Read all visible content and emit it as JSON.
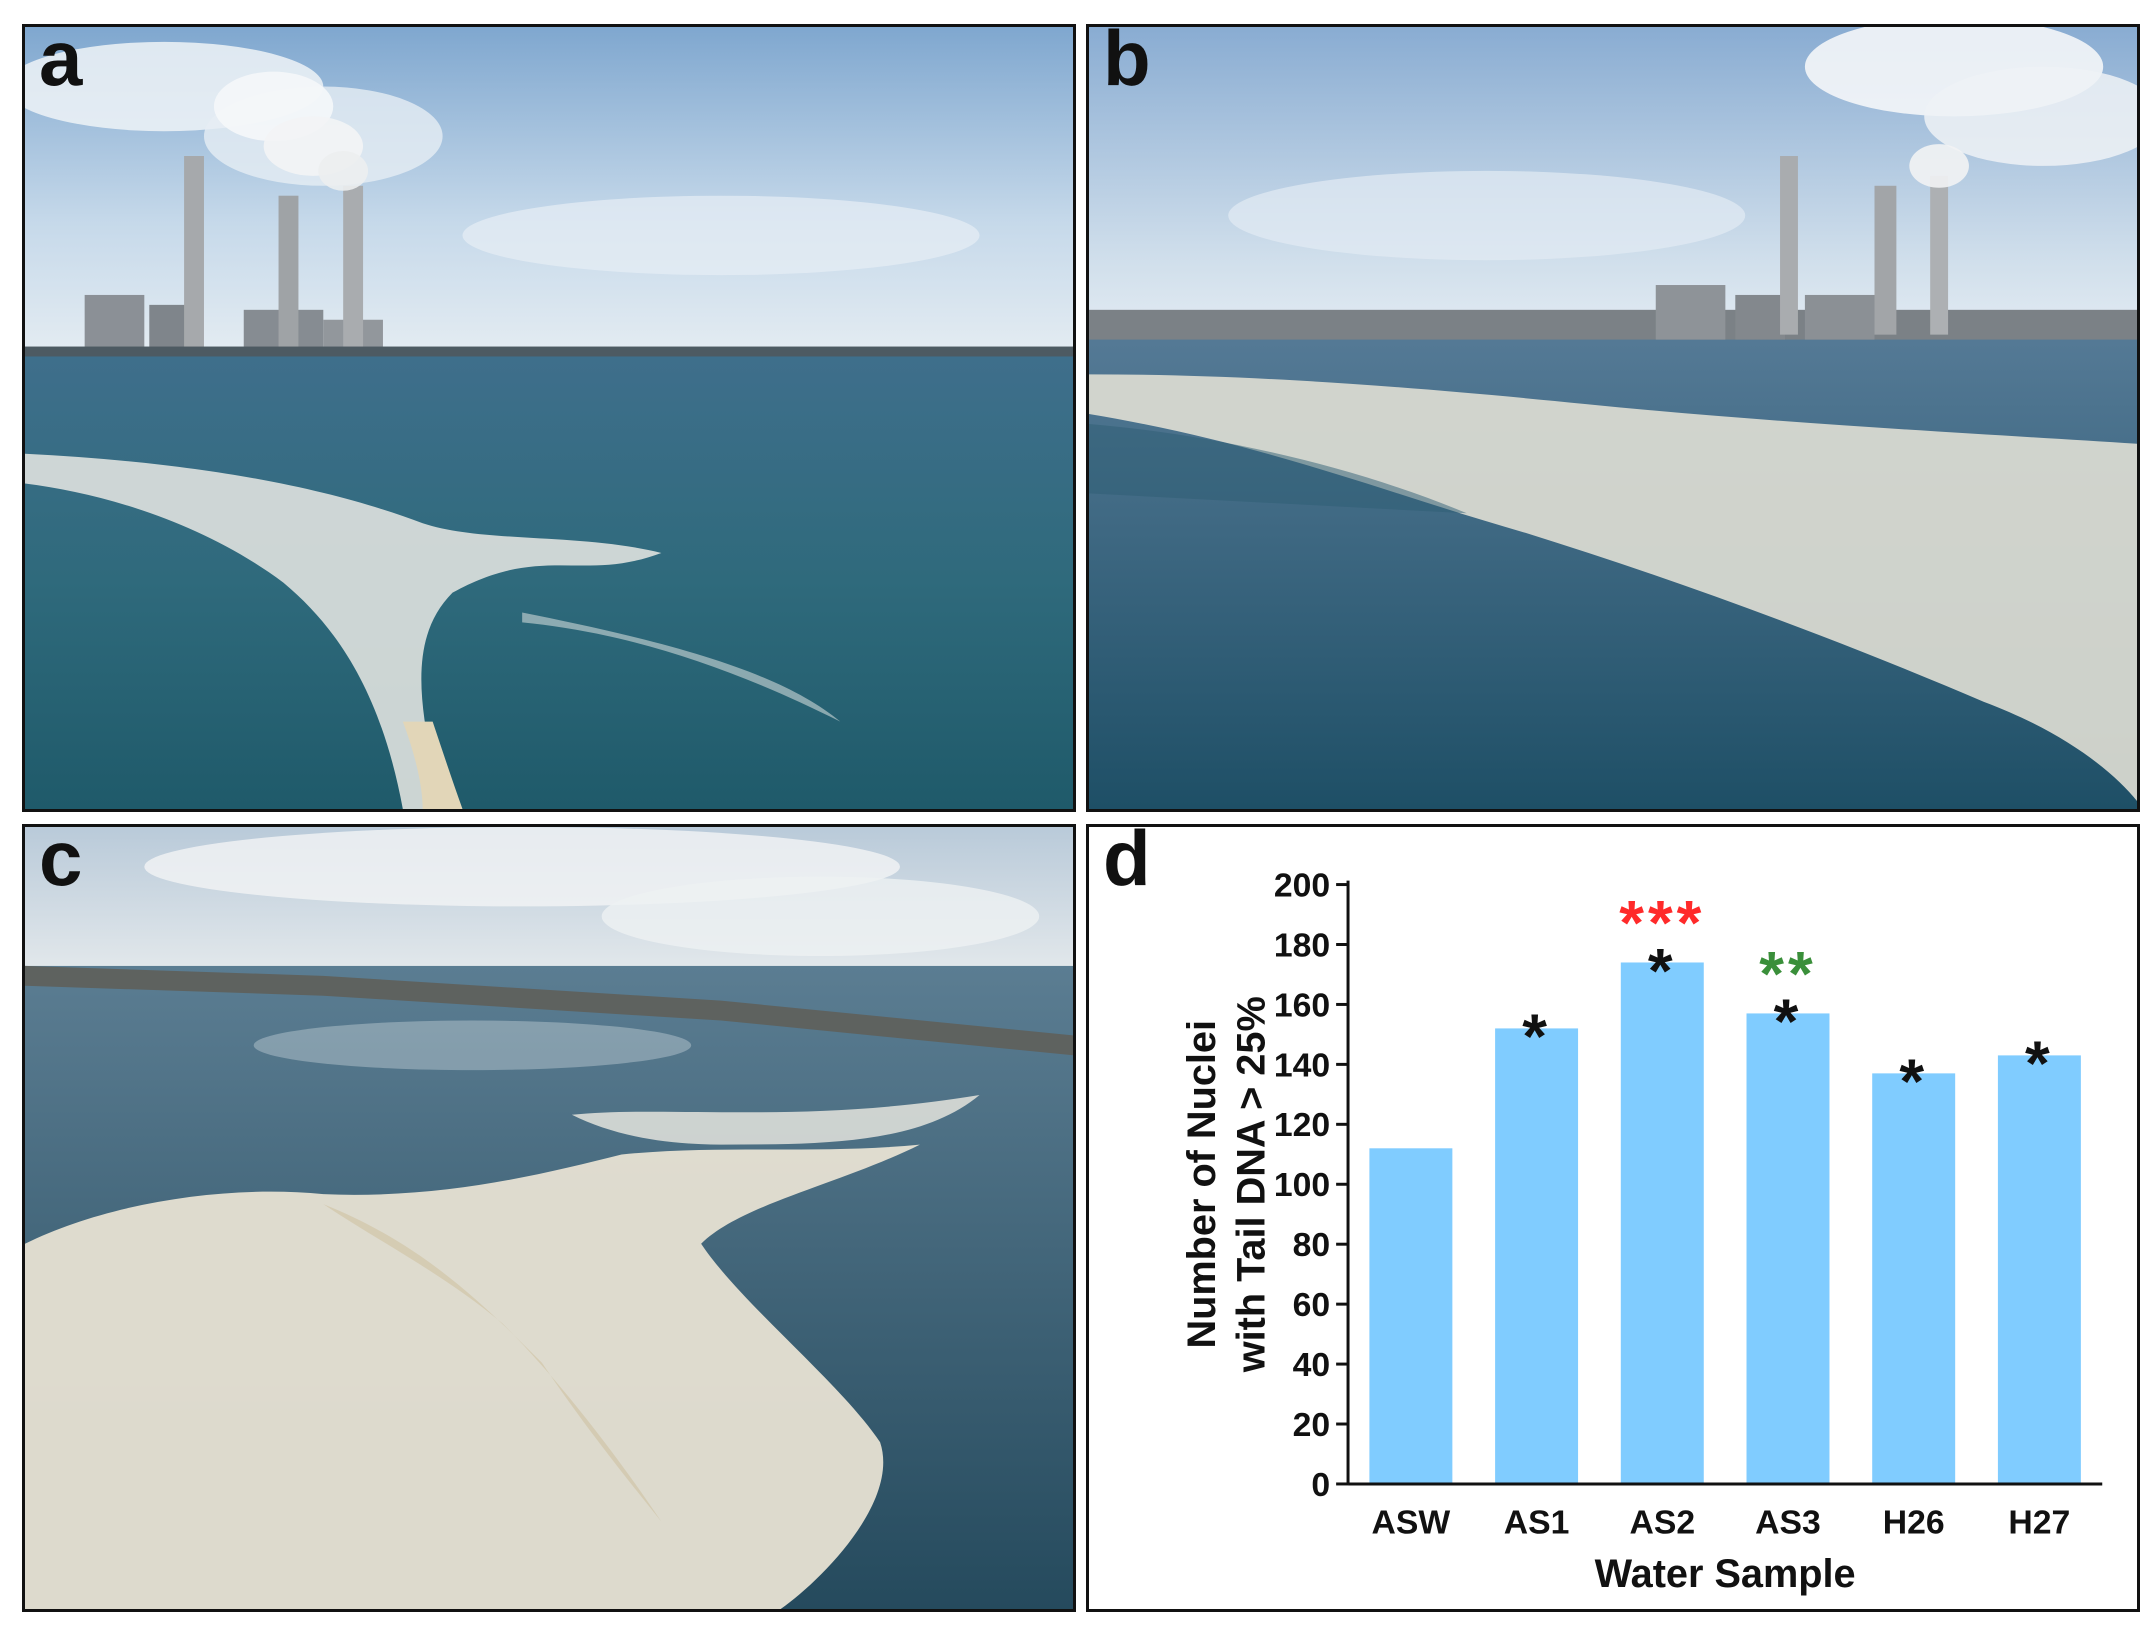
{
  "panels": {
    "a": {
      "label": "a"
    },
    "b": {
      "label": "b"
    },
    "c": {
      "label": "c"
    },
    "d": {
      "label": "d"
    }
  },
  "chart_data": {
    "type": "bar",
    "categories": [
      "ASW",
      "AS1",
      "AS2",
      "AS3",
      "H26",
      "H27"
    ],
    "values": [
      112,
      152,
      174,
      157,
      137,
      143
    ],
    "title": "",
    "xlabel": "Water Sample",
    "ylabel_lines": [
      "Number of Nuclei",
      "with Tail DNA > 25%"
    ],
    "ylim": [
      0,
      200
    ],
    "yticks": [
      0,
      20,
      40,
      60,
      80,
      100,
      120,
      140,
      160,
      180,
      200
    ],
    "bar_color": "#80ccff",
    "grid": false,
    "legend": "none",
    "significance": [
      {
        "category": "ASW",
        "marks": []
      },
      {
        "category": "AS1",
        "marks": [
          {
            "text": "*",
            "color": "#111111"
          }
        ]
      },
      {
        "category": "AS2",
        "marks": [
          {
            "text": "*",
            "color": "#111111"
          },
          {
            "text": "***",
            "color": "#ff2a2a"
          }
        ]
      },
      {
        "category": "AS3",
        "marks": [
          {
            "text": "*",
            "color": "#111111"
          },
          {
            "text": "**",
            "color": "#3a8f3a"
          }
        ]
      },
      {
        "category": "H26",
        "marks": [
          {
            "text": "*",
            "color": "#111111"
          }
        ]
      },
      {
        "category": "H27",
        "marks": [
          {
            "text": "*",
            "color": "#111111"
          }
        ]
      }
    ]
  }
}
